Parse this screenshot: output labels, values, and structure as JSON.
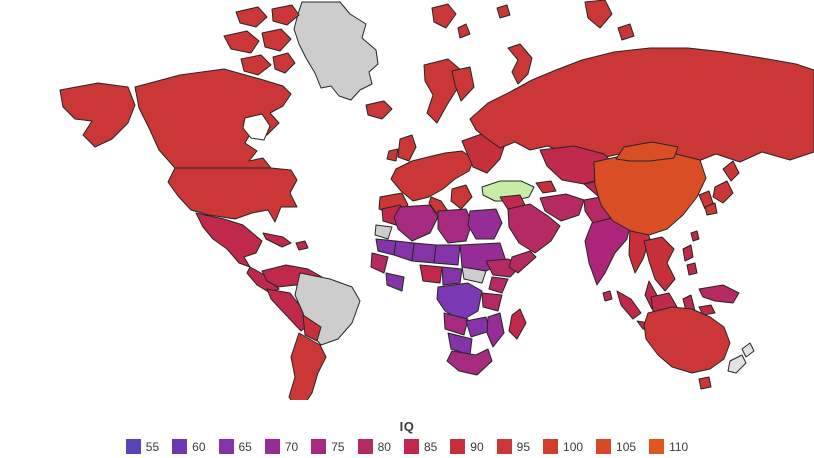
{
  "legend": {
    "title": "IQ",
    "items": [
      {
        "label": "55",
        "color": "#5b44b8"
      },
      {
        "label": "60",
        "color": "#6f38b2"
      },
      {
        "label": "65",
        "color": "#8433a8"
      },
      {
        "label": "70",
        "color": "#962c97"
      },
      {
        "label": "75",
        "color": "#a62a80"
      },
      {
        "label": "80",
        "color": "#b52a62"
      },
      {
        "label": "85",
        "color": "#c0294c"
      },
      {
        "label": "90",
        "color": "#c72f3b"
      },
      {
        "label": "95",
        "color": "#cb3737"
      },
      {
        "label": "100",
        "color": "#d23d2c"
      },
      {
        "label": "105",
        "color": "#d94826"
      },
      {
        "label": "110",
        "color": "#e05620"
      }
    ]
  },
  "map": {
    "ocean_color": "#ffffff",
    "border_color": "#262626",
    "no_data_color": "#cdcdcd",
    "highlight_color": "#c9eda6"
  },
  "chart_data": {
    "type": "choropleth",
    "title": "IQ",
    "legend_bins": [
      55,
      60,
      65,
      70,
      75,
      80,
      85,
      90,
      95,
      100,
      105,
      110
    ],
    "bin_colors": [
      "#5b44b8",
      "#6f38b2",
      "#8433a8",
      "#962c97",
      "#a62a80",
      "#b52a62",
      "#c0294c",
      "#c72f3b",
      "#cb3737",
      "#d23d2c",
      "#d94826",
      "#e05620"
    ],
    "regions": [
      {
        "id": "greenland",
        "name": "Greenland",
        "approx_iq": null,
        "color": "#cdcdcd"
      },
      {
        "id": "arctic-islands",
        "name": "Canadian Arctic Islands",
        "approx_iq": 95,
        "color": "#cb3737"
      },
      {
        "id": "alaska",
        "name": "Alaska",
        "approx_iq": 95,
        "color": "#cb3737"
      },
      {
        "id": "canada",
        "name": "Canada",
        "approx_iq": 95,
        "color": "#cb3737"
      },
      {
        "id": "usa",
        "name": "United States",
        "approx_iq": 95,
        "color": "#cb3737"
      },
      {
        "id": "mexico",
        "name": "Mexico",
        "approx_iq": 85,
        "color": "#c0294c"
      },
      {
        "id": "central-america",
        "name": "Central America",
        "approx_iq": 85,
        "color": "#c0294c"
      },
      {
        "id": "caribbean",
        "name": "Caribbean",
        "approx_iq": 85,
        "color": "#c0294c"
      },
      {
        "id": "colombia-venezuela",
        "name": "Colombia / Venezuela",
        "approx_iq": 85,
        "color": "#c0294c"
      },
      {
        "id": "peru-west",
        "name": "Peru / Ecuador",
        "approx_iq": 85,
        "color": "#c0294c"
      },
      {
        "id": "brazil",
        "name": "Brazil",
        "approx_iq": null,
        "color": "#cdcdcd"
      },
      {
        "id": "bolivia-paraguay",
        "name": "Bolivia / Paraguay",
        "approx_iq": 90,
        "color": "#c72f3b"
      },
      {
        "id": "argentina-chile",
        "name": "Argentina / Chile",
        "approx_iq": 95,
        "color": "#cb3737"
      },
      {
        "id": "iceland",
        "name": "Iceland",
        "approx_iq": 95,
        "color": "#cb3737"
      },
      {
        "id": "uk",
        "name": "United Kingdom",
        "approx_iq": 95,
        "color": "#cb3737"
      },
      {
        "id": "ireland",
        "name": "Ireland",
        "approx_iq": 95,
        "color": "#cb3737"
      },
      {
        "id": "scandinavia",
        "name": "Scandinavia",
        "approx_iq": 95,
        "color": "#cb3737"
      },
      {
        "id": "finland",
        "name": "Finland",
        "approx_iq": 95,
        "color": "#cb3737"
      },
      {
        "id": "europe-west",
        "name": "Western Europe",
        "approx_iq": 95,
        "color": "#cb3737"
      },
      {
        "id": "iberia",
        "name": "Iberia",
        "approx_iq": 95,
        "color": "#cb3737"
      },
      {
        "id": "italy",
        "name": "Italy",
        "approx_iq": 95,
        "color": "#cb3737"
      },
      {
        "id": "balkans",
        "name": "Balkans / Greece",
        "approx_iq": 95,
        "color": "#cb3737"
      },
      {
        "id": "europe-east",
        "name": "Eastern Europe",
        "approx_iq": 90,
        "color": "#c72f3b"
      },
      {
        "id": "turkey",
        "name": "Turkey",
        "approx_iq": null,
        "color": "#c9eda6"
      },
      {
        "id": "caucasus",
        "name": "Caucasus",
        "approx_iq": 90,
        "color": "#c72f3b"
      },
      {
        "id": "svalbard",
        "name": "Svalbard",
        "approx_iq": 95,
        "color": "#cb3737"
      },
      {
        "id": "novaya-zemlya",
        "name": "Novaya Zemlya",
        "approx_iq": 95,
        "color": "#cb3737"
      },
      {
        "id": "franz-josef",
        "name": "Arctic Russia Islands",
        "approx_iq": 95,
        "color": "#cb3737"
      },
      {
        "id": "russia",
        "name": "Russia",
        "approx_iq": 95,
        "color": "#cb3737"
      },
      {
        "id": "kazakhstan",
        "name": "Kazakhstan",
        "approx_iq": 85,
        "color": "#c0294c"
      },
      {
        "id": "stans",
        "name": "Central Asia",
        "approx_iq": 85,
        "color": "#c0294c"
      },
      {
        "id": "iran",
        "name": "Iran",
        "approx_iq": 80,
        "color": "#b52a62"
      },
      {
        "id": "iraq-syria",
        "name": "Iraq / Syria",
        "approx_iq": 85,
        "color": "#c0294c"
      },
      {
        "id": "arabia",
        "name": "Arabian Peninsula",
        "approx_iq": 80,
        "color": "#b52a62"
      },
      {
        "id": "afghan-pak",
        "name": "Afghanistan / Pakistan",
        "approx_iq": 80,
        "color": "#b52a62"
      },
      {
        "id": "india",
        "name": "India",
        "approx_iq": 80,
        "color": "#ad2579"
      },
      {
        "id": "sri-lanka",
        "name": "Sri Lanka",
        "approx_iq": 85,
        "color": "#c0294c"
      },
      {
        "id": "myanmar",
        "name": "Myanmar",
        "approx_iq": 90,
        "color": "#c72f3b"
      },
      {
        "id": "se-asia",
        "name": "Thailand / Vietnam",
        "approx_iq": 90,
        "color": "#c72f3b"
      },
      {
        "id": "malay",
        "name": "Malaysia",
        "approx_iq": 85,
        "color": "#c0294c"
      },
      {
        "id": "china",
        "name": "China",
        "approx_iq": 105,
        "color": "#da4e26"
      },
      {
        "id": "mongolia",
        "name": "Mongolia",
        "approx_iq": 105,
        "color": "#da4e26"
      },
      {
        "id": "korea",
        "name": "Korea",
        "approx_iq": 95,
        "color": "#cb3737"
      },
      {
        "id": "japan",
        "name": "Japan",
        "approx_iq": 95,
        "color": "#cb3737"
      },
      {
        "id": "taiwan",
        "name": "Taiwan",
        "approx_iq": 85,
        "color": "#c0294c"
      },
      {
        "id": "philippines",
        "name": "Philippines",
        "approx_iq": 85,
        "color": "#c0294c"
      },
      {
        "id": "sumatra",
        "name": "Sumatra",
        "approx_iq": 85,
        "color": "#c0294c"
      },
      {
        "id": "java",
        "name": "Java",
        "approx_iq": 85,
        "color": "#c0294c"
      },
      {
        "id": "borneo",
        "name": "Borneo",
        "approx_iq": 85,
        "color": "#c0294c"
      },
      {
        "id": "sulawesi",
        "name": "Sulawesi",
        "approx_iq": 85,
        "color": "#c0294c"
      },
      {
        "id": "lesser-sunda",
        "name": "Lesser Sunda Islands",
        "approx_iq": 85,
        "color": "#c0294c"
      },
      {
        "id": "new-guinea",
        "name": "New Guinea",
        "approx_iq": 80,
        "color": "#b52a62"
      },
      {
        "id": "australia",
        "name": "Australia",
        "approx_iq": 95,
        "color": "#cb3737"
      },
      {
        "id": "tasmania",
        "name": "Tasmania",
        "approx_iq": 95,
        "color": "#cb3737"
      },
      {
        "id": "new-zealand",
        "name": "New Zealand",
        "approx_iq": null,
        "color": "#e3e3e3"
      },
      {
        "id": "morocco",
        "name": "Morocco",
        "approx_iq": 85,
        "color": "#c0294c"
      },
      {
        "id": "western-sahara",
        "name": "Western Sahara",
        "approx_iq": null,
        "color": "#cdcdcd"
      },
      {
        "id": "algeria",
        "name": "Algeria",
        "approx_iq": 75,
        "color": "#a62a80"
      },
      {
        "id": "libya",
        "name": "Libya",
        "approx_iq": 75,
        "color": "#a62a80"
      },
      {
        "id": "egypt",
        "name": "Egypt",
        "approx_iq": 70,
        "color": "#962c97"
      },
      {
        "id": "mauritania",
        "name": "Mauritania",
        "approx_iq": 65,
        "color": "#8433a8"
      },
      {
        "id": "mali",
        "name": "Mali",
        "approx_iq": 65,
        "color": "#8433a8"
      },
      {
        "id": "niger",
        "name": "Niger",
        "approx_iq": 65,
        "color": "#8433a8"
      },
      {
        "id": "chad",
        "name": "Chad",
        "approx_iq": 65,
        "color": "#8433a8"
      },
      {
        "id": "sudan",
        "name": "Sudan",
        "approx_iq": 70,
        "color": "#962c97"
      },
      {
        "id": "south-sudan",
        "name": "South Sudan",
        "approx_iq": null,
        "color": "#cdcdcd"
      },
      {
        "id": "senegal-guinea",
        "name": "Senegal / Guinea",
        "approx_iq": 80,
        "color": "#b52a62"
      },
      {
        "id": "ghana-ivory",
        "name": "Ghana / Ivory Coast",
        "approx_iq": 65,
        "color": "#8433a8"
      },
      {
        "id": "nigeria",
        "name": "Nigeria",
        "approx_iq": 85,
        "color": "#c0294c"
      },
      {
        "id": "cameroon-car",
        "name": "Cameroon / CAR",
        "approx_iq": 65,
        "color": "#8433a8"
      },
      {
        "id": "drc",
        "name": "DR Congo",
        "approx_iq": 60,
        "color": "#7a38b2"
      },
      {
        "id": "ethiopia",
        "name": "Ethiopia",
        "approx_iq": 80,
        "color": "#b52a62"
      },
      {
        "id": "somalia",
        "name": "Somalia",
        "approx_iq": 80,
        "color": "#b52a62"
      },
      {
        "id": "kenya",
        "name": "Kenya",
        "approx_iq": 80,
        "color": "#b52a62"
      },
      {
        "id": "tanzania",
        "name": "Tanzania",
        "approx_iq": 80,
        "color": "#b52a62"
      },
      {
        "id": "angola",
        "name": "Angola",
        "approx_iq": 75,
        "color": "#a62a80"
      },
      {
        "id": "zambia",
        "name": "Zambia / Zimbabwe",
        "approx_iq": 65,
        "color": "#8433a8"
      },
      {
        "id": "mozambique",
        "name": "Mozambique",
        "approx_iq": 70,
        "color": "#962c97"
      },
      {
        "id": "namibia-botswana",
        "name": "Namibia / Botswana",
        "approx_iq": 65,
        "color": "#8433a8"
      },
      {
        "id": "south-africa",
        "name": "South Africa",
        "approx_iq": 75,
        "color": "#a62a80"
      },
      {
        "id": "madagascar",
        "name": "Madagascar",
        "approx_iq": 85,
        "color": "#c0294c"
      }
    ]
  }
}
